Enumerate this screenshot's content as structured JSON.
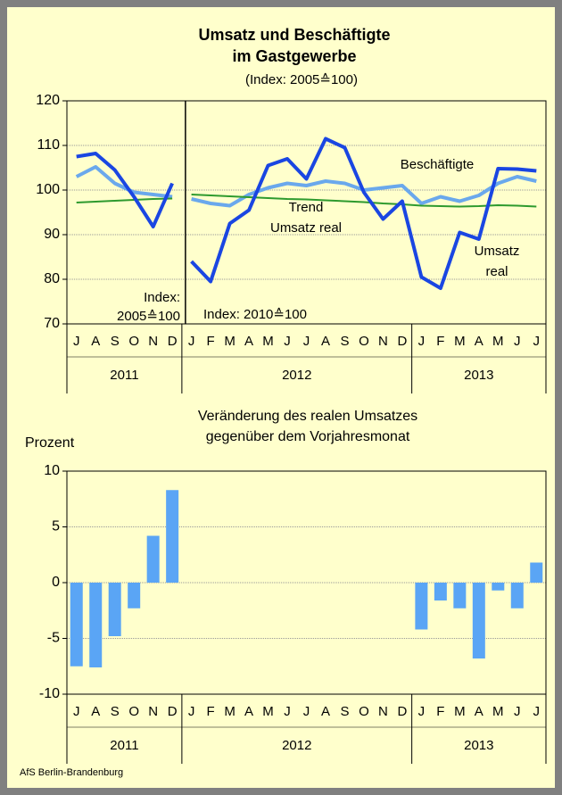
{
  "chart_data": [
    {
      "type": "line",
      "title": [
        "Umsatz und Beschäftigte",
        "im Gastgewerbe"
      ],
      "subtitle": "(Index: 2005≙100)",
      "groups": [
        {
          "label": "2011",
          "categories": [
            "J",
            "A",
            "S",
            "O",
            "N",
            "D"
          ]
        },
        {
          "label": "2012",
          "categories": [
            "J",
            "F",
            "M",
            "A",
            "M",
            "J",
            "J",
            "A",
            "S",
            "O",
            "N",
            "D"
          ]
        },
        {
          "label": "2013",
          "categories": [
            "J",
            "F",
            "M",
            "A",
            "M",
            "J",
            "J"
          ]
        }
      ],
      "series": [
        {
          "name": "Beschäftigte",
          "color": "#6aa8ec",
          "width": 4,
          "values": [
            103,
            105.2,
            101.5,
            99.5,
            99,
            98.5,
            98,
            97,
            96.5,
            99,
            100.5,
            101.5,
            101,
            102,
            101.5,
            100,
            100.5,
            101,
            97,
            98.5,
            97.5,
            98.8,
            101.5,
            103,
            102
          ]
        },
        {
          "name": "Trend Umsatz real",
          "color": "#2e9a2e",
          "width": 2,
          "values": [
            97.2,
            97.4,
            97.6,
            97.8,
            98,
            98.1,
            99,
            98.8,
            98.6,
            98.4,
            98.2,
            98,
            97.9,
            97.7,
            97.5,
            97.3,
            97,
            96.8,
            96.5,
            96.4,
            96.3,
            96.4,
            96.6,
            96.5,
            96.3
          ]
        },
        {
          "name": "Umsatz real",
          "color": "#1a46e2",
          "width": 4,
          "values": [
            107.5,
            108.2,
            104.5,
            98.5,
            91.8,
            101.5,
            84,
            79.5,
            92.5,
            95.5,
            105.5,
            107,
            102.5,
            111.5,
            109.5,
            99.5,
            93.5,
            97.5,
            80.5,
            78,
            90.5,
            89,
            104.8,
            104.7,
            104.3
          ]
        }
      ],
      "annotations": [
        "Beschäftigte",
        "Trend",
        "Umsatz real",
        "Umsatz",
        "real",
        "Index:",
        "2005≙100",
        "Index: 2010≙100"
      ],
      "ylim": [
        70,
        120
      ],
      "yticks": [
        70,
        80,
        90,
        100,
        110,
        120
      ],
      "grid": true
    },
    {
      "type": "bar",
      "title": [
        "Veränderung des realen Umsatzes",
        "gegenüber dem Vorjahresmonat"
      ],
      "ylabel": "Prozent",
      "groups": [
        {
          "label": "2011",
          "categories": [
            "J",
            "A",
            "S",
            "O",
            "N",
            "D"
          ]
        },
        {
          "label": "2012",
          "categories": [
            "J",
            "F",
            "M",
            "A",
            "M",
            "J",
            "J",
            "A",
            "S",
            "O",
            "N",
            "D"
          ]
        },
        {
          "label": "2013",
          "categories": [
            "J",
            "F",
            "M",
            "A",
            "M",
            "J",
            "J"
          ]
        }
      ],
      "color": "#5aa5f5",
      "values": [
        -7.5,
        -7.6,
        -4.8,
        -2.3,
        4.2,
        8.3,
        null,
        null,
        null,
        null,
        null,
        null,
        null,
        null,
        null,
        null,
        null,
        null,
        -4.2,
        -1.6,
        -2.3,
        -6.8,
        -0.7,
        -2.3,
        1.8
      ],
      "ylim": [
        -10,
        10
      ],
      "yticks": [
        -10,
        -5,
        0,
        5,
        10
      ],
      "grid": true
    }
  ],
  "source": "AfS Berlin-Brandenburg"
}
